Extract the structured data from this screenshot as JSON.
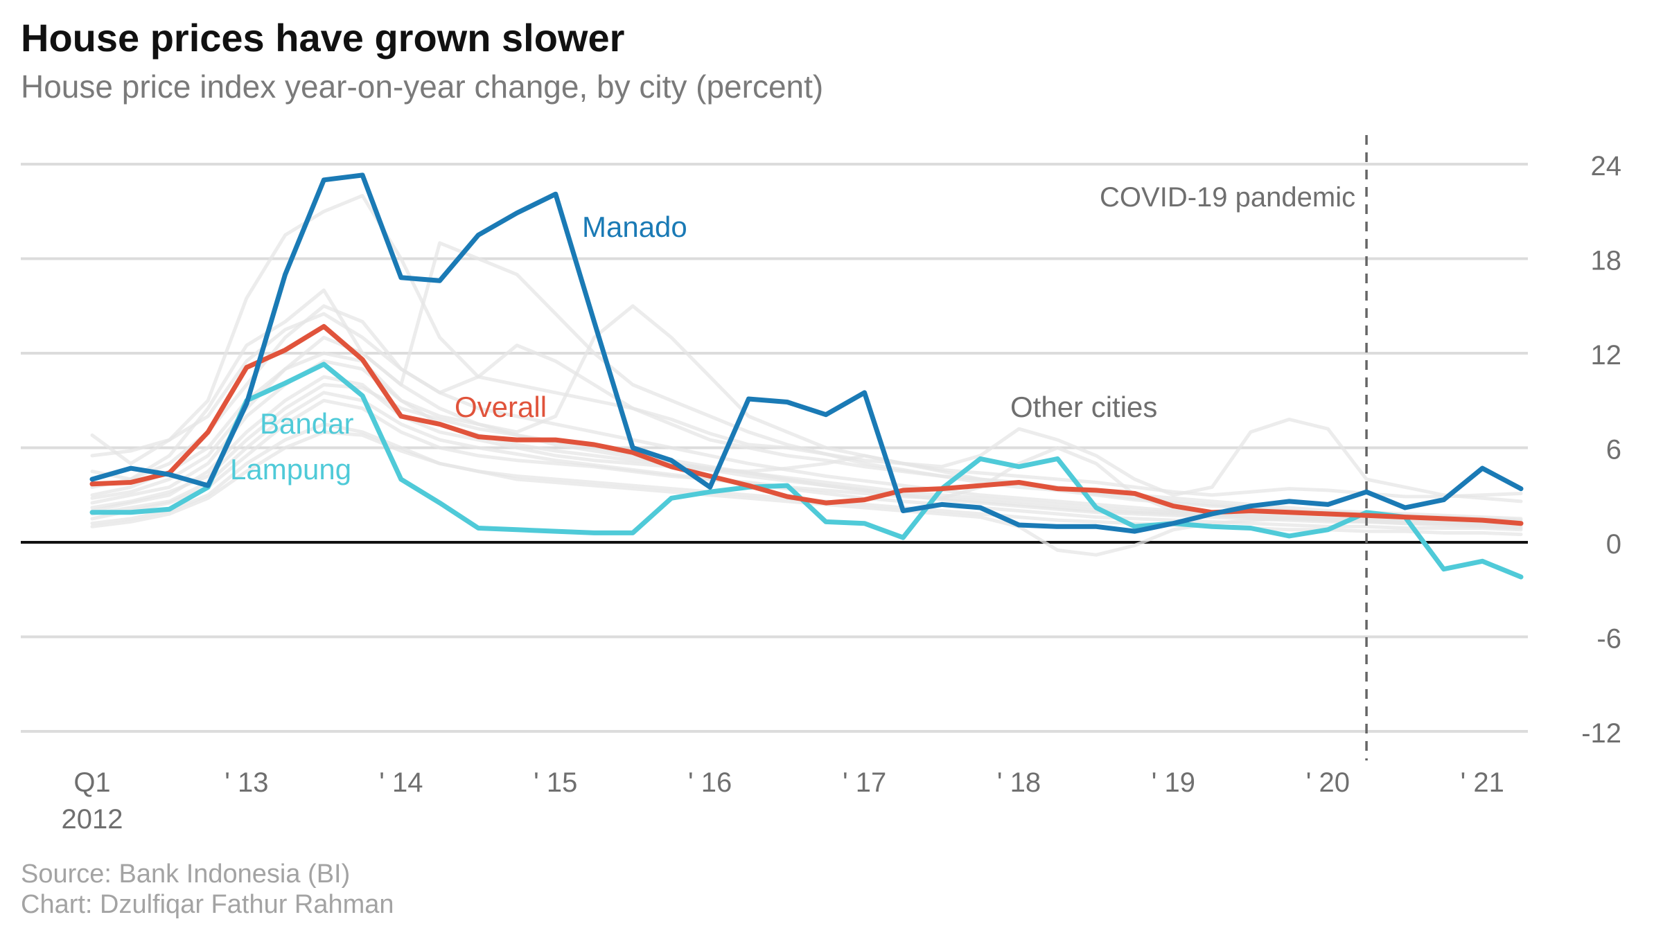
{
  "title": "House prices have grown slower",
  "subtitle": "House price index year-on-year change, by city (percent)",
  "source": "Source: Bank Indonesia (BI)",
  "credit": "Chart: Dzulfiqar Fathur Rahman",
  "colors": {
    "manado": "#1a7ab5",
    "overall": "#e0533b",
    "bandar_lampung": "#4fcad8",
    "other": "#e5e5e5",
    "grid": "#dcdcdc",
    "zero": "#111111",
    "label": "#777777"
  },
  "chart_data": {
    "type": "line",
    "x_count": 38,
    "x_tick_labels": [
      {
        "idx": 0,
        "label": "Q1",
        "sub": "2012"
      },
      {
        "idx": 4,
        "label": "' 13"
      },
      {
        "idx": 8,
        "label": "' 14"
      },
      {
        "idx": 12,
        "label": "' 15"
      },
      {
        "idx": 16,
        "label": "' 16"
      },
      {
        "idx": 20,
        "label": "' 17"
      },
      {
        "idx": 24,
        "label": "' 18"
      },
      {
        "idx": 28,
        "label": "' 19"
      },
      {
        "idx": 32,
        "label": "' 20"
      },
      {
        "idx": 36,
        "label": "' 21"
      }
    ],
    "ylim": [
      -14,
      26
    ],
    "y_ticks": [
      24,
      18,
      12,
      6,
      0,
      -6,
      -12
    ],
    "grid": true,
    "annotation": {
      "label": "COVID-19 pandemic",
      "x_idx": 33.0
    },
    "series": [
      {
        "name": "Manado",
        "key": "manado",
        "label_lines": [
          "Manado"
        ],
        "values": [
          4.0,
          4.7,
          4.3,
          3.6,
          8.8,
          17.0,
          23.0,
          23.3,
          16.8,
          16.6,
          19.5,
          20.9,
          22.1,
          14.0,
          6.0,
          5.2,
          3.5,
          9.1,
          8.9,
          8.1,
          9.5,
          2.0,
          2.4,
          2.2,
          1.1,
          1.0,
          1.0,
          0.7,
          1.2,
          1.8,
          2.3,
          2.6,
          2.4,
          3.2,
          2.2,
          2.7,
          4.7,
          3.4
        ]
      },
      {
        "name": "Overall",
        "key": "overall",
        "label_lines": [
          "Overall"
        ],
        "values": [
          3.7,
          3.8,
          4.4,
          7.0,
          11.1,
          12.2,
          13.7,
          11.6,
          8.0,
          7.5,
          6.7,
          6.5,
          6.5,
          6.2,
          5.7,
          4.8,
          4.2,
          3.6,
          2.9,
          2.5,
          2.7,
          3.3,
          3.4,
          3.6,
          3.8,
          3.4,
          3.3,
          3.1,
          2.3,
          1.9,
          2.0,
          1.9,
          1.8,
          1.7,
          1.6,
          1.5,
          1.4,
          1.2
        ]
      },
      {
        "name": "Bandar Lampung",
        "key": "bandar_lampung",
        "label_lines": [
          "Bandar",
          "Lampung"
        ],
        "values": [
          1.9,
          1.9,
          2.1,
          3.5,
          9.0,
          10.1,
          11.3,
          9.3,
          4.0,
          2.5,
          0.9,
          0.8,
          0.7,
          0.6,
          0.6,
          2.8,
          3.2,
          3.5,
          3.6,
          1.3,
          1.2,
          0.3,
          3.4,
          5.3,
          4.8,
          5.3,
          2.2,
          1.0,
          1.2,
          1.0,
          0.9,
          0.4,
          0.8,
          1.9,
          1.6,
          -1.7,
          -1.2,
          -2.2
        ]
      }
    ],
    "other_cities_label": "Other cities",
    "other_cities": [
      [
        6.8,
        5.0,
        6.5,
        9.0,
        15.5,
        19.5,
        21.0,
        22.0,
        18.0,
        13.0,
        10.5,
        10.0,
        9.5,
        9.0,
        8.5,
        7.8,
        6.9,
        6.2,
        6.0,
        5.6,
        5.2,
        5.0,
        4.6,
        4.4,
        4.2,
        4.0,
        3.8,
        3.5,
        3.2,
        3.0,
        3.2,
        3.4,
        3.3,
        3.1,
        2.9,
        2.9,
        3.0,
        3.1
      ],
      [
        4.5,
        4.0,
        5.5,
        8.5,
        12.5,
        14.0,
        16.0,
        12.0,
        10.0,
        19.0,
        18.0,
        17.0,
        14.5,
        12.0,
        10.0,
        9.0,
        8.0,
        7.0,
        6.2,
        5.6,
        5.0,
        4.6,
        4.2,
        4.0,
        3.7,
        3.4,
        3.1,
        2.8,
        2.6,
        2.4,
        2.2,
        2.0,
        1.9,
        1.8,
        1.7,
        1.6,
        1.5,
        1.4
      ],
      [
        3.5,
        4.0,
        5.0,
        7.0,
        10.0,
        13.0,
        15.0,
        14.0,
        11.0,
        9.5,
        10.5,
        12.5,
        11.5,
        10.0,
        8.5,
        7.5,
        6.5,
        6.0,
        5.5,
        5.2,
        4.8,
        4.5,
        4.2,
        3.8,
        3.5,
        3.3,
        3.0,
        2.7,
        2.5,
        2.3,
        2.2,
        2.0,
        1.8,
        1.7,
        1.6,
        1.5,
        1.3,
        1.2
      ],
      [
        2.8,
        3.2,
        4.0,
        5.5,
        8.5,
        11.0,
        12.0,
        11.5,
        9.0,
        8.0,
        7.5,
        7.0,
        8.0,
        13.0,
        15.0,
        13.0,
        10.5,
        8.0,
        7.0,
        6.0,
        5.5,
        5.0,
        4.5,
        4.0,
        3.8,
        3.5,
        3.2,
        3.0,
        2.8,
        2.6,
        2.4,
        2.2,
        2.0,
        1.9,
        1.8,
        1.7,
        1.6,
        1.5
      ],
      [
        2.0,
        2.5,
        3.0,
        4.5,
        7.0,
        9.0,
        10.5,
        10.0,
        8.0,
        7.0,
        6.5,
        6.0,
        5.5,
        5.2,
        5.0,
        4.8,
        4.6,
        4.5,
        4.7,
        5.0,
        5.5,
        5.0,
        4.8,
        5.5,
        7.2,
        6.5,
        5.5,
        4.0,
        3.0,
        3.5,
        7.0,
        7.8,
        7.2,
        4.0,
        3.5,
        3.0,
        2.8,
        2.6
      ],
      [
        1.5,
        2.0,
        2.5,
        3.5,
        5.5,
        7.5,
        9.0,
        8.5,
        7.0,
        6.0,
        5.5,
        5.2,
        5.0,
        4.8,
        4.5,
        4.2,
        4.0,
        3.8,
        3.5,
        3.3,
        3.1,
        2.9,
        2.8,
        3.5,
        5.0,
        6.0,
        5.0,
        3.0,
        2.0,
        1.8,
        1.6,
        1.5,
        1.4,
        1.3,
        1.2,
        1.1,
        1.0,
        0.9
      ],
      [
        1.2,
        1.5,
        2.0,
        3.0,
        5.0,
        6.5,
        7.5,
        7.0,
        6.0,
        5.0,
        4.5,
        4.0,
        3.8,
        3.6,
        3.4,
        3.2,
        3.0,
        2.8,
        2.6,
        2.4,
        2.2,
        2.0,
        1.8,
        1.6,
        1.0,
        -0.5,
        -0.8,
        -0.2,
        0.8,
        1.2,
        1.4,
        1.5,
        1.5,
        1.4,
        1.3,
        1.2,
        1.2,
        1.1
      ],
      [
        2.5,
        3.0,
        3.5,
        5.0,
        8.0,
        10.0,
        11.5,
        11.0,
        9.0,
        7.5,
        6.8,
        6.2,
        5.8,
        5.5,
        5.2,
        5.0,
        4.7,
        4.4,
        4.1,
        3.8,
        3.5,
        3.2,
        3.0,
        2.8,
        2.6,
        2.4,
        2.2,
        2.0,
        1.9,
        1.8,
        1.7,
        1.6,
        1.5,
        1.4,
        1.3,
        1.2,
        1.1,
        1.0
      ],
      [
        3.0,
        3.5,
        4.5,
        6.0,
        9.0,
        11.0,
        13.0,
        12.0,
        10.0,
        8.5,
        7.5,
        6.8,
        6.2,
        5.8,
        5.4,
        5.0,
        4.6,
        4.2,
        3.9,
        3.6,
        3.3,
        3.0,
        2.8,
        2.6,
        2.4,
        2.2,
        2.0,
        1.9,
        1.8,
        1.7,
        1.6,
        1.5,
        1.4,
        1.4,
        1.3,
        1.3,
        1.2,
        1.2
      ],
      [
        1.8,
        2.2,
        2.6,
        3.8,
        6.0,
        8.0,
        9.5,
        9.0,
        7.5,
        6.5,
        6.0,
        5.6,
        5.2,
        4.9,
        4.6,
        4.3,
        4.0,
        3.7,
        3.4,
        3.1,
        2.8,
        2.6,
        2.4,
        2.2,
        2.0,
        1.8,
        1.6,
        1.5,
        1.4,
        1.3,
        1.2,
        1.1,
        1.0,
        1.0,
        0.9,
        0.9,
        0.9,
        0.8
      ],
      [
        1.0,
        1.3,
        1.8,
        2.8,
        4.5,
        6.0,
        7.0,
        6.8,
        5.8,
        5.0,
        4.5,
        4.2,
        4.0,
        3.8,
        3.6,
        3.4,
        3.2,
        3.0,
        2.8,
        2.6,
        2.4,
        2.2,
        2.0,
        1.8,
        1.6,
        1.4,
        1.3,
        1.2,
        1.1,
        1.0,
        0.9,
        0.8,
        0.8,
        0.7,
        0.7,
        0.6,
        0.6,
        0.5
      ],
      [
        5.5,
        5.8,
        6.5,
        8.0,
        11.5,
        13.5,
        14.5,
        13.0,
        11.0,
        9.5,
        8.5,
        8.0,
        7.5,
        7.0,
        6.5,
        6.0,
        5.5,
        5.0,
        4.6,
        4.2,
        3.9,
        3.6,
        3.3,
        3.0,
        2.8,
        2.6,
        2.4,
        2.2,
        2.0,
        1.9,
        1.8,
        1.7,
        1.6,
        1.5,
        1.5,
        1.4,
        1.4,
        1.3
      ],
      [
        2.2,
        2.6,
        3.2,
        4.2,
        6.5,
        8.5,
        10.0,
        9.8,
        8.5,
        7.8,
        7.2,
        6.8,
        6.4,
        6.0,
        5.6,
        5.2,
        4.8,
        4.4,
        4.0,
        3.6,
        3.3,
        3.0,
        2.7,
        2.5,
        2.3,
        2.1,
        1.9,
        1.8,
        1.7,
        1.6,
        1.5,
        1.4,
        1.3,
        1.3,
        1.2,
        1.2,
        1.1,
        1.1
      ]
    ]
  }
}
